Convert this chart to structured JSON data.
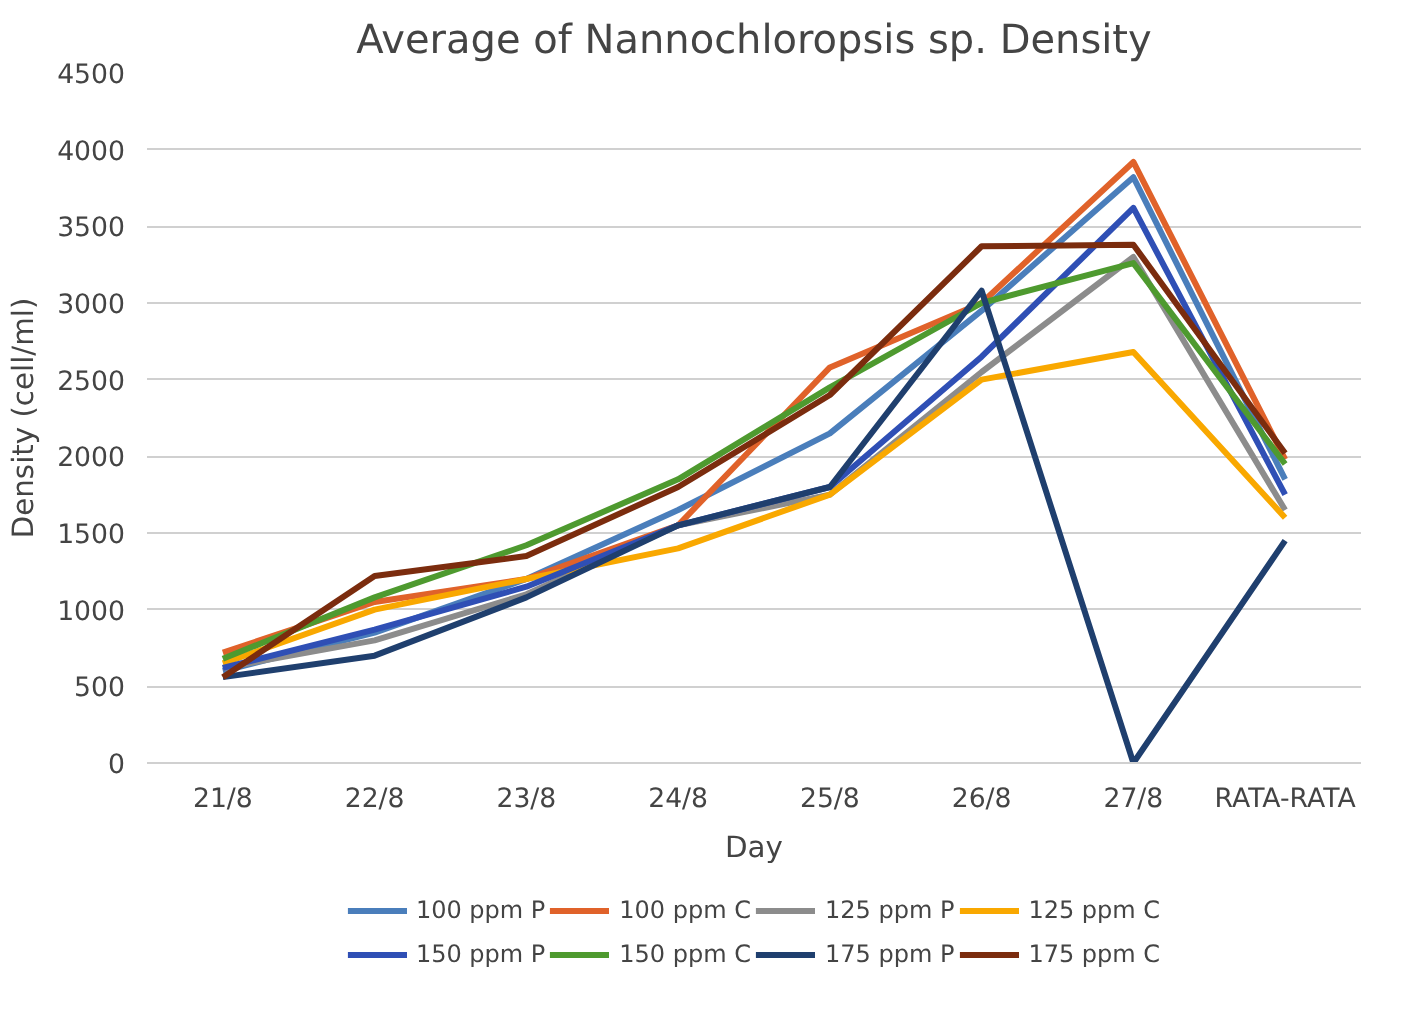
{
  "chart_data": {
    "type": "line",
    "title": "Average of Nannochloropsis sp. Density",
    "xlabel": "Day",
    "ylabel": "Density (cell/ml)",
    "categories": [
      "21/8",
      "22/8",
      "23/8",
      "24/8",
      "25/8",
      "26/8",
      "27/8",
      "RATA-RATA"
    ],
    "ylim": [
      0,
      4500
    ],
    "yticks": [
      0,
      500,
      1000,
      1500,
      2000,
      2500,
      3000,
      3500,
      4000,
      4500
    ],
    "grid": "y",
    "legend": "bottom",
    "marker": "none",
    "line_style": "solid",
    "series": [
      {
        "name": "100 ppm P",
        "color": "#4a7ebb",
        "values": [
          600,
          850,
          1200,
          1650,
          2150,
          2950,
          3820,
          1850
        ]
      },
      {
        "name": "100 ppm C",
        "color": "#e0622a",
        "values": [
          720,
          1050,
          1200,
          1550,
          2580,
          3000,
          3920,
          1980
        ]
      },
      {
        "name": "125 ppm P",
        "color": "#8c8c8c",
        "values": [
          620,
          800,
          1100,
          1550,
          1750,
          2550,
          3300,
          1650
        ]
      },
      {
        "name": "125 ppm C",
        "color": "#f9a800",
        "values": [
          650,
          1000,
          1200,
          1400,
          1750,
          2500,
          2680,
          1600
        ]
      },
      {
        "name": "150 ppm P",
        "color": "#2f4fb5",
        "values": [
          620,
          870,
          1150,
          1550,
          1800,
          2650,
          3620,
          1750
        ]
      },
      {
        "name": "150 ppm C",
        "color": "#4e9a2f",
        "values": [
          680,
          1080,
          1420,
          1850,
          2450,
          3000,
          3260,
          1950
        ]
      },
      {
        "name": "175 ppm P",
        "color": "#1f3f6e",
        "values": [
          560,
          700,
          1080,
          1550,
          1800,
          3080,
          0,
          1450
        ]
      },
      {
        "name": "175 ppm C",
        "color": "#7b2c0e",
        "values": [
          560,
          1220,
          1350,
          1800,
          2400,
          3370,
          3380,
          2020
        ]
      }
    ]
  }
}
